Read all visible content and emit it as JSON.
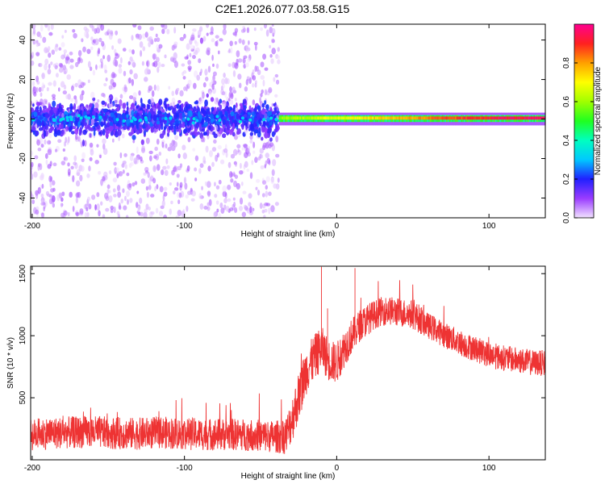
{
  "page": {
    "title": "C2E1.2026.077.03.58.G15"
  },
  "chart_data": [
    {
      "type": "heatmap",
      "title": "",
      "xlabel": "Height of straight line (km)",
      "ylabel": "Frequency (Hz)",
      "xlim": [
        -201,
        137
      ],
      "ylim": [
        -50,
        48
      ],
      "x_ticks": [
        -200,
        -100,
        0,
        100
      ],
      "x_tick_labels": [
        "-200",
        "-100",
        "0",
        "100"
      ],
      "y_ticks": [
        -40,
        -20,
        0,
        20,
        40
      ],
      "y_tick_labels": [
        "-40",
        "-20",
        "0",
        "20",
        "40"
      ],
      "colorbar": {
        "label": "Normalized spectral amplitude",
        "range": [
          0,
          1
        ],
        "ticks": [
          0.0,
          0.2,
          0.4,
          0.6,
          0.8
        ],
        "tick_labels": [
          "0.0",
          "0.2",
          "0.4",
          "0.6",
          "0.8"
        ]
      },
      "regions": [
        {
          "x_range": [
            -201,
            -38
          ],
          "freq_spread": [
            -50,
            48
          ],
          "core_band": [
            -8,
            8
          ],
          "amplitude": [
            0.05,
            0.35
          ]
        },
        {
          "x_range": [
            -38,
            137
          ],
          "freq_spread": [
            -3,
            3
          ],
          "core_band": [
            -1,
            2
          ],
          "amplitude": [
            0.5,
            1.0
          ]
        }
      ],
      "grid": false
    },
    {
      "type": "line",
      "title": "",
      "xlabel": "Height of straight line (km)",
      "ylabel": "SNR (10 * v/v)",
      "xlim": [
        -201,
        137
      ],
      "ylim": [
        0,
        1560
      ],
      "x_ticks": [
        -200,
        -100,
        0,
        100
      ],
      "x_tick_labels": [
        "-200",
        "-100",
        "0",
        "100"
      ],
      "y_ticks": [
        500,
        1000,
        1500
      ],
      "y_tick_labels": [
        "500",
        "1000",
        "1500"
      ],
      "color": "#ee3333",
      "grid": false,
      "series": [
        {
          "x": [
            -201,
            -190,
            -175,
            -160,
            -145,
            -130,
            -115,
            -100,
            -85,
            -70,
            -55,
            -40,
            -33,
            -28,
            -24,
            -20,
            -15,
            -10,
            -5,
            0,
            5,
            10,
            15,
            20,
            25,
            30,
            35,
            40,
            45,
            50,
            55,
            60,
            65,
            70,
            75,
            80,
            85,
            90,
            95,
            100,
            105,
            110,
            115,
            120,
            125,
            130,
            137
          ],
          "values": [
            200,
            215,
            220,
            225,
            215,
            210,
            220,
            210,
            205,
            205,
            200,
            185,
            200,
            380,
            550,
            720,
            820,
            900,
            800,
            780,
            900,
            1000,
            1080,
            1130,
            1170,
            1200,
            1200,
            1190,
            1180,
            1170,
            1130,
            1080,
            1050,
            1010,
            980,
            950,
            920,
            900,
            870,
            850,
            830,
            820,
            810,
            800,
            790,
            780,
            780
          ],
          "noise": [
            100,
            100,
            100,
            100,
            100,
            100,
            100,
            100,
            100,
            100,
            100,
            100,
            120,
            150,
            150,
            150,
            140,
            140,
            130,
            130,
            120,
            110,
            100,
            100,
            90,
            90,
            90,
            90,
            90,
            90,
            90,
            80,
            80,
            80,
            80,
            80,
            80,
            80,
            80,
            80,
            80,
            80,
            80,
            80,
            80,
            80,
            80
          ]
        }
      ]
    }
  ]
}
